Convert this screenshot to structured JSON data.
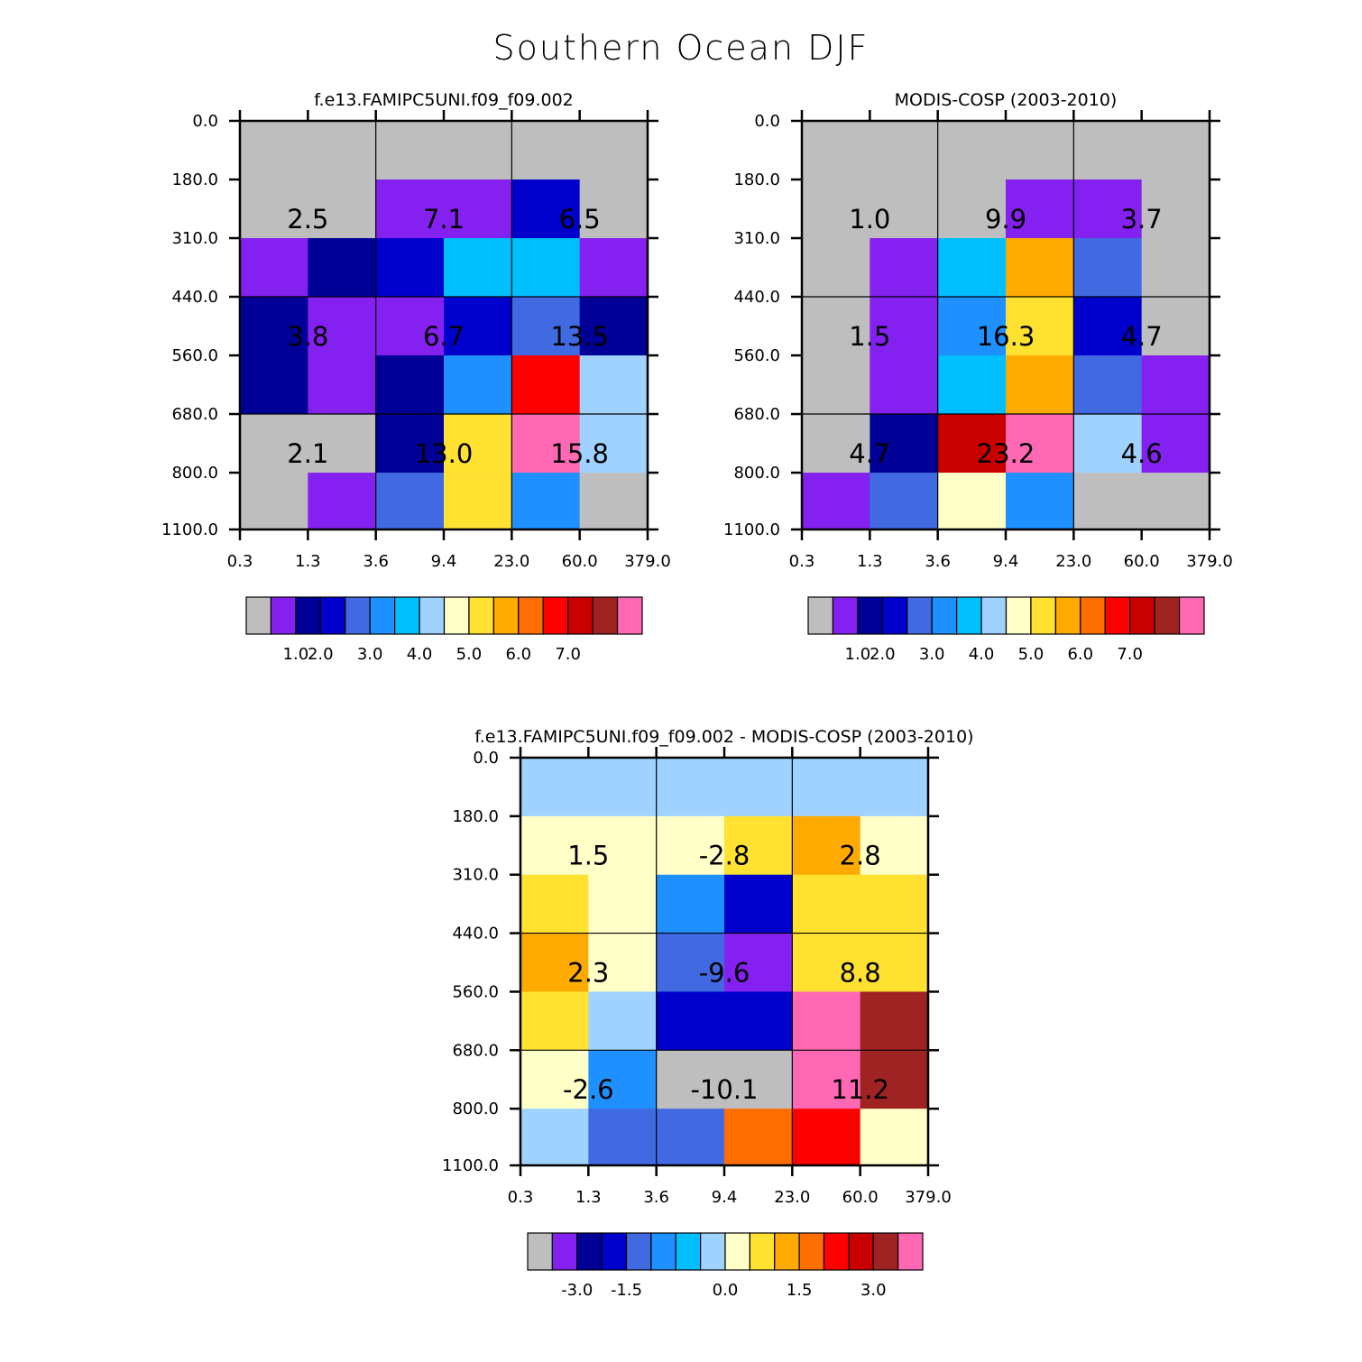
{
  "title": "Southern Ocean DJF",
  "legend_colors": [
    "#bebebe",
    "#8420f0",
    "#000096",
    "#0000cd",
    "#4169e1",
    "#1e90ff",
    "#00bfff",
    "#a0d2ff",
    "#ffffc8",
    "#ffe132",
    "#ffaa00",
    "#ff6e00",
    "#ff0000",
    "#c80000",
    "#a02323",
    "#ff69b4"
  ],
  "chart_data": [
    {
      "type": "heatmap",
      "id": "model",
      "title": "f.e13.FAMIPC5UNI.f09_f09.002",
      "x_ticks": [
        "0.3",
        "1.3",
        "3.6",
        "9.4",
        "23.0",
        "60.0",
        "379.0"
      ],
      "y_ticks": [
        "0.0",
        "180.0",
        "310.0",
        "440.0",
        "560.0",
        "680.0",
        "800.0",
        "1100.0"
      ],
      "cell_color_index": [
        [
          0,
          0,
          0,
          0,
          0,
          0
        ],
        [
          0,
          0,
          1,
          1,
          3,
          0
        ],
        [
          1,
          2,
          3,
          6,
          6,
          1
        ],
        [
          2,
          1,
          1,
          3,
          4,
          2
        ],
        [
          2,
          1,
          2,
          5,
          12,
          7
        ],
        [
          0,
          0,
          2,
          9,
          15,
          7
        ],
        [
          0,
          1,
          4,
          9,
          5,
          0
        ]
      ],
      "summary_values": [
        [
          "2.5",
          "7.1",
          "6.5"
        ],
        [
          "3.8",
          "6.7",
          "13.5"
        ],
        [
          "2.1",
          "13.0",
          "15.8"
        ]
      ],
      "colorbar_labels": [
        "1.0",
        "2.0",
        "3.0",
        "4.0",
        "5.0",
        "6.0",
        "7.0"
      ]
    },
    {
      "type": "heatmap",
      "id": "obs",
      "title": "MODIS-COSP (2003-2010)",
      "x_ticks": [
        "0.3",
        "1.3",
        "3.6",
        "9.4",
        "23.0",
        "60.0",
        "379.0"
      ],
      "y_ticks": [
        "0.0",
        "180.0",
        "310.0",
        "440.0",
        "560.0",
        "680.0",
        "800.0",
        "1100.0"
      ],
      "cell_color_index": [
        [
          0,
          0,
          0,
          0,
          0,
          0
        ],
        [
          0,
          0,
          0,
          1,
          1,
          0
        ],
        [
          0,
          1,
          6,
          10,
          4,
          0
        ],
        [
          0,
          1,
          5,
          9,
          3,
          0
        ],
        [
          0,
          1,
          6,
          10,
          4,
          1
        ],
        [
          0,
          2,
          13,
          15,
          7,
          1
        ],
        [
          1,
          4,
          8,
          5,
          0,
          0
        ]
      ],
      "summary_values": [
        [
          "1.0",
          "9.9",
          "3.7"
        ],
        [
          "1.5",
          "16.3",
          "4.7"
        ],
        [
          "4.7",
          "23.2",
          "4.6"
        ]
      ],
      "colorbar_labels": [
        "1.0",
        "2.0",
        "3.0",
        "4.0",
        "5.0",
        "6.0",
        "7.0"
      ]
    },
    {
      "type": "heatmap",
      "id": "diff",
      "title": "f.e13.FAMIPC5UNI.f09_f09.002 - MODIS-COSP (2003-2010)",
      "x_ticks": [
        "0.3",
        "1.3",
        "3.6",
        "9.4",
        "23.0",
        "60.0",
        "379.0"
      ],
      "y_ticks": [
        "0.0",
        "180.0",
        "310.0",
        "440.0",
        "560.0",
        "680.0",
        "800.0",
        "1100.0"
      ],
      "cell_color_index": [
        [
          7,
          7,
          7,
          7,
          7,
          7
        ],
        [
          8,
          8,
          8,
          9,
          10,
          8
        ],
        [
          9,
          8,
          5,
          3,
          9,
          9
        ],
        [
          10,
          8,
          4,
          1,
          9,
          9
        ],
        [
          9,
          7,
          3,
          3,
          15,
          14
        ],
        [
          8,
          5,
          0,
          0,
          15,
          14
        ],
        [
          7,
          4,
          4,
          11,
          12,
          8
        ]
      ],
      "summary_values": [
        [
          "1.5",
          "-2.8",
          "2.8"
        ],
        [
          "2.3",
          "-9.6",
          "8.8"
        ],
        [
          "-2.6",
          "-10.1",
          "11.2"
        ]
      ],
      "colorbar_labels": [
        "-3.0",
        "-1.5",
        "0.0",
        "1.5",
        "3.0"
      ]
    }
  ]
}
